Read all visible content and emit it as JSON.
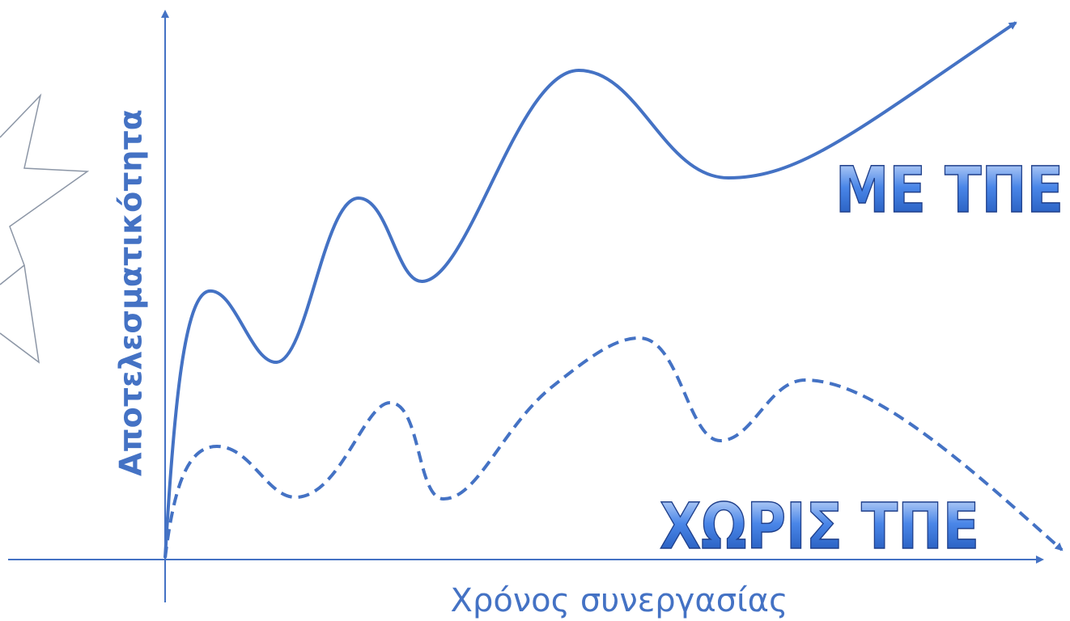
{
  "axes": {
    "y_label": "Αποτελεσματικότητα",
    "x_label": "Χρόνος συνεργασίας"
  },
  "curves": {
    "with": "ΜΕ ΤΠΕ",
    "without": "ΧΩΡΙΣ ΤΠΕ"
  }
}
